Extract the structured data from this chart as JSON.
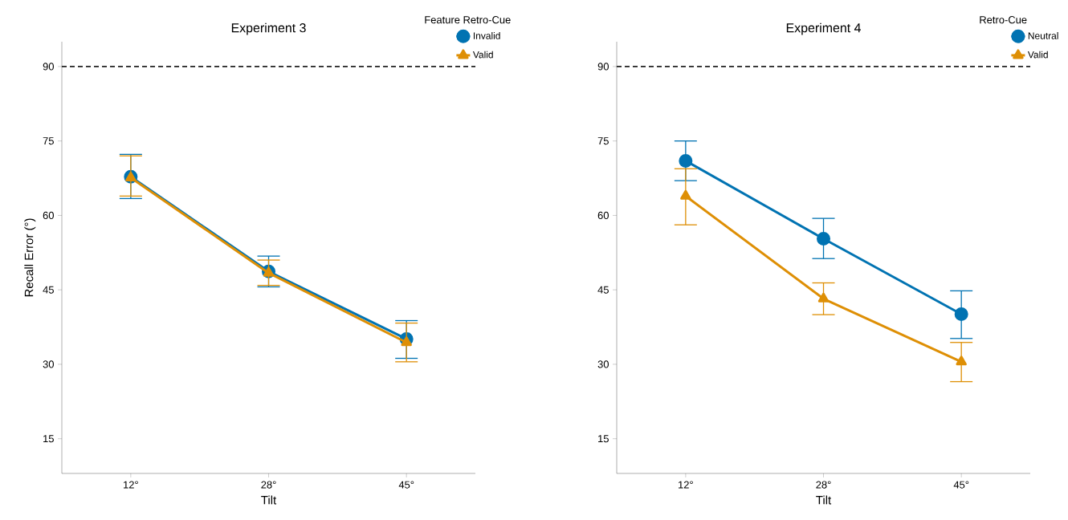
{
  "chart_data": [
    {
      "type": "line",
      "title": "Experiment 3",
      "xlabel": "Tilt",
      "ylabel": "Recall Error (°)",
      "legend_title": "Feature Retro-Cue",
      "legend": "top right",
      "categories": [
        "12°",
        "28°",
        "45°"
      ],
      "ylim": [
        8,
        95
      ],
      "yticks": [
        15,
        30,
        45,
        60,
        75,
        90
      ],
      "grid": false,
      "ref_lines": [
        {
          "axis": "y",
          "value": 90,
          "color": "#222222",
          "line_style": "dashed"
        }
      ],
      "series": [
        {
          "name": "Invalid",
          "color": "#0173b2",
          "marker": "circle",
          "values": [
            67.8,
            48.7,
            35.1
          ],
          "errors": [
            [
              63.4,
              72.3
            ],
            [
              45.6,
              51.8
            ],
            [
              31.2,
              38.8
            ]
          ]
        },
        {
          "name": "Valid",
          "color": "#de8f05",
          "marker": "triangle",
          "values": [
            67.6,
            48.4,
            34.4
          ],
          "errors": [
            [
              63.9,
              72.0
            ],
            [
              45.9,
              51.0
            ],
            [
              30.5,
              38.3
            ]
          ]
        }
      ]
    },
    {
      "type": "line",
      "title": "Experiment 4",
      "xlabel": "Tilt",
      "legend_title": "Retro-Cue",
      "legend": "top right",
      "categories": [
        "12°",
        "28°",
        "45°"
      ],
      "ylim": [
        8,
        95
      ],
      "yticks": [
        15,
        30,
        45,
        60,
        75,
        90
      ],
      "grid": false,
      "ref_lines": [
        {
          "axis": "y",
          "value": 90,
          "color": "#222222",
          "line_style": "dashed"
        }
      ],
      "series": [
        {
          "name": "Neutral",
          "color": "#0173b2",
          "marker": "circle",
          "values": [
            71.0,
            55.3,
            40.1
          ],
          "errors": [
            [
              67.0,
              75.0
            ],
            [
              51.3,
              59.4
            ],
            [
              35.2,
              44.8
            ]
          ]
        },
        {
          "name": "Valid",
          "color": "#de8f05",
          "marker": "triangle",
          "values": [
            63.9,
            43.2,
            30.5
          ],
          "errors": [
            [
              58.1,
              69.4
            ],
            [
              40.0,
              46.4
            ],
            [
              26.5,
              34.4
            ]
          ]
        }
      ]
    }
  ]
}
